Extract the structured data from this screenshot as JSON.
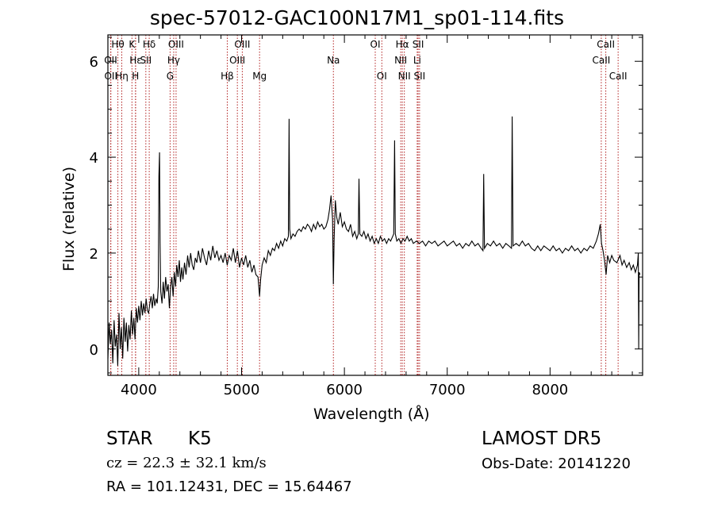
{
  "chart_data": {
    "type": "line",
    "title": "spec-57012-GAC100N17M1_sp01-114.fits",
    "xlabel": "Wavelength (Å)",
    "ylabel": "Flux (relative)",
    "xlim": [
      3700,
      8900
    ],
    "ylim": [
      -0.55,
      6.55
    ],
    "xticks": [
      4000,
      5000,
      6000,
      7000,
      8000
    ],
    "yticks": [
      0,
      2,
      4,
      6
    ],
    "grid": false,
    "line_color": "#000000",
    "marker_color": "#b22222",
    "line_markers": [
      {
        "label": "Hθ",
        "row": 1,
        "x": 3797
      },
      {
        "label": "OII",
        "row": 2,
        "x": 3727
      },
      {
        "label": "OII",
        "row": 3,
        "x": 3729
      },
      {
        "label": "Hη",
        "row": 3,
        "x": 3835
      },
      {
        "label": "K",
        "row": 1,
        "x": 3934
      },
      {
        "label": "Hε",
        "row": 2,
        "x": 3970
      },
      {
        "label": "H",
        "row": 3,
        "x": 3968
      },
      {
        "label": "Hδ",
        "row": 1,
        "x": 4102
      },
      {
        "label": "SII",
        "row": 2,
        "x": 4069
      },
      {
        "label": "OIII",
        "row": 1,
        "x": 4363
      },
      {
        "label": "Hγ",
        "row": 2,
        "x": 4340
      },
      {
        "label": "G",
        "row": 3,
        "x": 4305
      },
      {
        "label": "OIII",
        "row": 1,
        "x": 5007
      },
      {
        "label": "OIII",
        "row": 2,
        "x": 4959
      },
      {
        "label": "Hβ",
        "row": 3,
        "x": 4861
      },
      {
        "label": "Mg",
        "row": 3,
        "x": 5175
      },
      {
        "label": "Na",
        "row": 2,
        "x": 5893
      },
      {
        "label": "OI",
        "row": 1,
        "x": 6300
      },
      {
        "label": "OI",
        "row": 3,
        "x": 6364
      },
      {
        "label": "Hα",
        "row": 1,
        "x": 6563
      },
      {
        "label": "NII",
        "row": 2,
        "x": 6548
      },
      {
        "label": "NII",
        "row": 3,
        "x": 6583
      },
      {
        "label": "SII",
        "row": 1,
        "x": 6717
      },
      {
        "label": "Li",
        "row": 2,
        "x": 6708
      },
      {
        "label": "SII",
        "row": 3,
        "x": 6731
      },
      {
        "label": "CaII",
        "row": 1,
        "x": 8542
      },
      {
        "label": "CaII",
        "row": 2,
        "x": 8498
      },
      {
        "label": "CaII",
        "row": 3,
        "x": 8662
      }
    ],
    "series": [
      {
        "points": [
          [
            3700,
            -0.2
          ],
          [
            3712,
            0.55
          ],
          [
            3724,
            0.1
          ],
          [
            3736,
            0.4
          ],
          [
            3748,
            -0.3
          ],
          [
            3760,
            0.6
          ],
          [
            3772,
            0.05
          ],
          [
            3784,
            0.3
          ],
          [
            3796,
            -0.35
          ],
          [
            3808,
            0.75
          ],
          [
            3820,
            0.0
          ],
          [
            3832,
            0.45
          ],
          [
            3844,
            -0.2
          ],
          [
            3856,
            0.65
          ],
          [
            3868,
            0.15
          ],
          [
            3880,
            0.55
          ],
          [
            3892,
            -0.05
          ],
          [
            3904,
            0.5
          ],
          [
            3916,
            0.2
          ],
          [
            3928,
            0.8
          ],
          [
            3940,
            0.3
          ],
          [
            3952,
            0.65
          ],
          [
            3964,
            0.2
          ],
          [
            3976,
            0.85
          ],
          [
            3988,
            0.55
          ],
          [
            4000,
            0.9
          ],
          [
            4012,
            0.6
          ],
          [
            4024,
            1.0
          ],
          [
            4036,
            0.7
          ],
          [
            4048,
            0.95
          ],
          [
            4060,
            0.75
          ],
          [
            4072,
            1.05
          ],
          [
            4084,
            0.8
          ],
          [
            4096,
            0.75
          ],
          [
            4108,
            0.95
          ],
          [
            4120,
            1.1
          ],
          [
            4132,
            0.85
          ],
          [
            4144,
            1.15
          ],
          [
            4156,
            0.9
          ],
          [
            4168,
            1.05
          ],
          [
            4180,
            0.95
          ],
          [
            4190,
            1.3
          ],
          [
            4196,
            3.6
          ],
          [
            4202,
            4.1
          ],
          [
            4208,
            2.2
          ],
          [
            4214,
            1.2
          ],
          [
            4226,
            0.95
          ],
          [
            4238,
            1.4
          ],
          [
            4250,
            1.05
          ],
          [
            4262,
            1.5
          ],
          [
            4274,
            1.2
          ],
          [
            4286,
            1.35
          ],
          [
            4298,
            0.85
          ],
          [
            4310,
            1.3
          ],
          [
            4322,
            1.5
          ],
          [
            4334,
            1.1
          ],
          [
            4346,
            1.6
          ],
          [
            4358,
            1.3
          ],
          [
            4370,
            1.75
          ],
          [
            4382,
            1.5
          ],
          [
            4394,
            1.85
          ],
          [
            4406,
            1.4
          ],
          [
            4418,
            1.7
          ],
          [
            4430,
            1.45
          ],
          [
            4445,
            1.8
          ],
          [
            4460,
            1.55
          ],
          [
            4475,
            1.95
          ],
          [
            4490,
            1.7
          ],
          [
            4505,
            2.0
          ],
          [
            4520,
            1.75
          ],
          [
            4535,
            1.65
          ],
          [
            4550,
            1.9
          ],
          [
            4565,
            1.8
          ],
          [
            4580,
            2.05
          ],
          [
            4600,
            1.8
          ],
          [
            4620,
            2.1
          ],
          [
            4640,
            1.9
          ],
          [
            4660,
            1.75
          ],
          [
            4680,
            2.05
          ],
          [
            4700,
            1.85
          ],
          [
            4720,
            2.15
          ],
          [
            4740,
            1.9
          ],
          [
            4760,
            2.05
          ],
          [
            4780,
            1.85
          ],
          [
            4800,
            1.95
          ],
          [
            4820,
            1.8
          ],
          [
            4840,
            2.0
          ],
          [
            4860,
            1.75
          ],
          [
            4880,
            1.95
          ],
          [
            4900,
            1.85
          ],
          [
            4920,
            2.1
          ],
          [
            4940,
            1.8
          ],
          [
            4960,
            2.05
          ],
          [
            4980,
            1.7
          ],
          [
            5000,
            1.9
          ],
          [
            5020,
            1.75
          ],
          [
            5040,
            1.95
          ],
          [
            5060,
            1.7
          ],
          [
            5080,
            1.85
          ],
          [
            5100,
            1.6
          ],
          [
            5120,
            1.75
          ],
          [
            5140,
            1.55
          ],
          [
            5160,
            1.5
          ],
          [
            5175,
            1.1
          ],
          [
            5185,
            1.45
          ],
          [
            5200,
            1.75
          ],
          [
            5220,
            1.9
          ],
          [
            5240,
            1.8
          ],
          [
            5260,
            2.05
          ],
          [
            5280,
            1.95
          ],
          [
            5300,
            2.1
          ],
          [
            5320,
            2.05
          ],
          [
            5340,
            2.2
          ],
          [
            5360,
            2.1
          ],
          [
            5380,
            2.25
          ],
          [
            5400,
            2.15
          ],
          [
            5420,
            2.3
          ],
          [
            5440,
            2.25
          ],
          [
            5455,
            2.35
          ],
          [
            5462,
            4.8
          ],
          [
            5468,
            2.5
          ],
          [
            5480,
            2.3
          ],
          [
            5500,
            2.4
          ],
          [
            5520,
            2.35
          ],
          [
            5540,
            2.45
          ],
          [
            5560,
            2.5
          ],
          [
            5580,
            2.45
          ],
          [
            5600,
            2.55
          ],
          [
            5620,
            2.5
          ],
          [
            5640,
            2.6
          ],
          [
            5660,
            2.55
          ],
          [
            5680,
            2.45
          ],
          [
            5700,
            2.6
          ],
          [
            5720,
            2.5
          ],
          [
            5740,
            2.65
          ],
          [
            5760,
            2.55
          ],
          [
            5780,
            2.6
          ],
          [
            5800,
            2.5
          ],
          [
            5820,
            2.55
          ],
          [
            5840,
            2.7
          ],
          [
            5855,
            2.9
          ],
          [
            5870,
            3.2
          ],
          [
            5885,
            2.7
          ],
          [
            5893,
            1.35
          ],
          [
            5900,
            2.3
          ],
          [
            5912,
            3.1
          ],
          [
            5925,
            2.75
          ],
          [
            5940,
            2.6
          ],
          [
            5960,
            2.85
          ],
          [
            5980,
            2.55
          ],
          [
            6000,
            2.65
          ],
          [
            6020,
            2.5
          ],
          [
            6040,
            2.45
          ],
          [
            6060,
            2.6
          ],
          [
            6080,
            2.35
          ],
          [
            6100,
            2.45
          ],
          [
            6120,
            2.3
          ],
          [
            6135,
            2.4
          ],
          [
            6142,
            3.55
          ],
          [
            6150,
            2.4
          ],
          [
            6170,
            2.35
          ],
          [
            6190,
            2.45
          ],
          [
            6210,
            2.3
          ],
          [
            6230,
            2.4
          ],
          [
            6250,
            2.25
          ],
          [
            6270,
            2.35
          ],
          [
            6290,
            2.2
          ],
          [
            6310,
            2.3
          ],
          [
            6330,
            2.2
          ],
          [
            6350,
            2.35
          ],
          [
            6370,
            2.25
          ],
          [
            6390,
            2.3
          ],
          [
            6410,
            2.2
          ],
          [
            6430,
            2.3
          ],
          [
            6450,
            2.25
          ],
          [
            6470,
            2.35
          ],
          [
            6480,
            2.4
          ],
          [
            6488,
            4.35
          ],
          [
            6495,
            2.4
          ],
          [
            6510,
            2.25
          ],
          [
            6530,
            2.3
          ],
          [
            6550,
            2.2
          ],
          [
            6570,
            2.3
          ],
          [
            6590,
            2.25
          ],
          [
            6610,
            2.35
          ],
          [
            6630,
            2.25
          ],
          [
            6650,
            2.3
          ],
          [
            6670,
            2.2
          ],
          [
            6700,
            2.25
          ],
          [
            6730,
            2.2
          ],
          [
            6760,
            2.25
          ],
          [
            6790,
            2.15
          ],
          [
            6820,
            2.25
          ],
          [
            6850,
            2.2
          ],
          [
            6880,
            2.25
          ],
          [
            6910,
            2.15
          ],
          [
            6940,
            2.2
          ],
          [
            6970,
            2.25
          ],
          [
            7000,
            2.15
          ],
          [
            7030,
            2.2
          ],
          [
            7060,
            2.25
          ],
          [
            7090,
            2.15
          ],
          [
            7120,
            2.2
          ],
          [
            7150,
            2.1
          ],
          [
            7180,
            2.2
          ],
          [
            7210,
            2.15
          ],
          [
            7240,
            2.25
          ],
          [
            7270,
            2.15
          ],
          [
            7300,
            2.2
          ],
          [
            7330,
            2.1
          ],
          [
            7348,
            2.05
          ],
          [
            7355,
            3.65
          ],
          [
            7362,
            2.1
          ],
          [
            7390,
            2.2
          ],
          [
            7420,
            2.15
          ],
          [
            7450,
            2.25
          ],
          [
            7480,
            2.15
          ],
          [
            7510,
            2.2
          ],
          [
            7540,
            2.1
          ],
          [
            7570,
            2.2
          ],
          [
            7600,
            2.15
          ],
          [
            7625,
            2.1
          ],
          [
            7632,
            4.85
          ],
          [
            7640,
            2.15
          ],
          [
            7670,
            2.2
          ],
          [
            7700,
            2.15
          ],
          [
            7730,
            2.25
          ],
          [
            7760,
            2.15
          ],
          [
            7790,
            2.2
          ],
          [
            7820,
            2.1
          ],
          [
            7850,
            2.05
          ],
          [
            7880,
            2.15
          ],
          [
            7910,
            2.05
          ],
          [
            7940,
            2.15
          ],
          [
            7970,
            2.1
          ],
          [
            8000,
            2.05
          ],
          [
            8030,
            2.15
          ],
          [
            8060,
            2.05
          ],
          [
            8090,
            2.1
          ],
          [
            8120,
            2.0
          ],
          [
            8150,
            2.1
          ],
          [
            8180,
            2.05
          ],
          [
            8210,
            2.15
          ],
          [
            8240,
            2.05
          ],
          [
            8270,
            2.1
          ],
          [
            8300,
            2.0
          ],
          [
            8330,
            2.1
          ],
          [
            8360,
            2.05
          ],
          [
            8390,
            2.15
          ],
          [
            8420,
            2.1
          ],
          [
            8450,
            2.25
          ],
          [
            8470,
            2.4
          ],
          [
            8488,
            2.6
          ],
          [
            8500,
            2.2
          ],
          [
            8515,
            2.05
          ],
          [
            8530,
            1.85
          ],
          [
            8545,
            1.55
          ],
          [
            8560,
            1.95
          ],
          [
            8580,
            1.8
          ],
          [
            8600,
            1.95
          ],
          [
            8620,
            1.85
          ],
          [
            8650,
            1.8
          ],
          [
            8680,
            1.95
          ],
          [
            8700,
            1.75
          ],
          [
            8720,
            1.85
          ],
          [
            8745,
            1.7
          ],
          [
            8770,
            1.8
          ],
          [
            8790,
            1.65
          ],
          [
            8810,
            1.75
          ],
          [
            8830,
            1.6
          ],
          [
            8850,
            1.75
          ],
          [
            8858,
            2.0
          ],
          [
            8862,
            0.0
          ],
          [
            8866,
            1.6
          ],
          [
            8875,
            1.55
          ]
        ]
      }
    ]
  },
  "footer": {
    "object_type": "STAR",
    "subclass": "K5",
    "survey": "LAMOST DR5",
    "cz": "cz = 22.3 ± 32.1 km/s",
    "obs_date": "Obs-Date: 20141220",
    "radec": "RA = 101.12431, DEC =  15.64467"
  }
}
